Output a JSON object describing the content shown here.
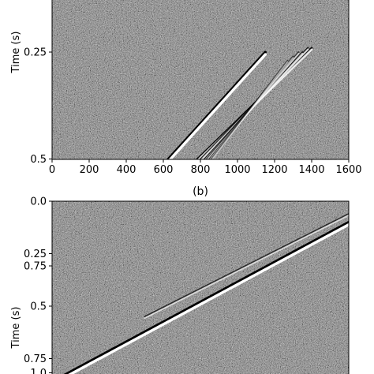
{
  "chart_data": [
    {
      "type": "heatmap",
      "panel": "a",
      "title": "",
      "xlabel": "",
      "ylabel": "Time (s)",
      "xlim": [
        0,
        1600
      ],
      "ylim": [
        1.0,
        0.0
      ],
      "x_ticks": [
        0,
        200,
        400,
        600,
        800,
        1000,
        1200,
        1400,
        1600
      ],
      "x_tick_labels": [
        "0",
        "200",
        "400",
        "600",
        "800",
        "1000",
        "1200",
        "1400",
        "1600"
      ],
      "y_ticks": [
        0.25,
        0.5,
        0.75,
        1.0
      ],
      "y_tick_labels": [
        "0.25",
        "0.5",
        "0.75",
        "1.0"
      ],
      "colormap": "gray",
      "events": [
        {
          "from": [
            0,
            0.8
          ],
          "to": [
            1150,
            0.25
          ],
          "strength": 1.0
        },
        {
          "from": [
            0,
            0.83
          ],
          "to": [
            1400,
            0.24
          ],
          "strength": 0.55
        },
        {
          "from": [
            0,
            0.86
          ],
          "to": [
            1380,
            0.24
          ],
          "strength": 0.45
        },
        {
          "from": [
            0,
            0.89
          ],
          "to": [
            1350,
            0.25
          ],
          "strength": 0.4
        },
        {
          "from": [
            0,
            0.92
          ],
          "to": [
            1330,
            0.25
          ],
          "strength": 0.35
        },
        {
          "from": [
            0,
            0.95
          ],
          "to": [
            1300,
            0.26
          ],
          "strength": 0.3
        },
        {
          "from": [
            0,
            0.98
          ],
          "to": [
            1270,
            0.27
          ],
          "strength": 0.25
        }
      ]
    },
    {
      "type": "heatmap",
      "panel": "b",
      "title": "(b)",
      "xlabel": "",
      "ylabel": "Time (s)",
      "xlim": [
        0,
        1600
      ],
      "ylim": [
        0.9,
        0.0
      ],
      "y_ticks": [
        0.0,
        0.25,
        0.5,
        0.75
      ],
      "y_tick_labels": [
        "0.0",
        "0.25",
        "0.5",
        "0.75"
      ],
      "colormap": "gray",
      "events": [
        {
          "from": [
            0,
            0.86
          ],
          "to": [
            1600,
            0.1
          ],
          "strength": 1.0
        },
        {
          "from": [
            500,
            0.55
          ],
          "to": [
            1600,
            0.06
          ],
          "strength": 0.35
        }
      ]
    }
  ]
}
